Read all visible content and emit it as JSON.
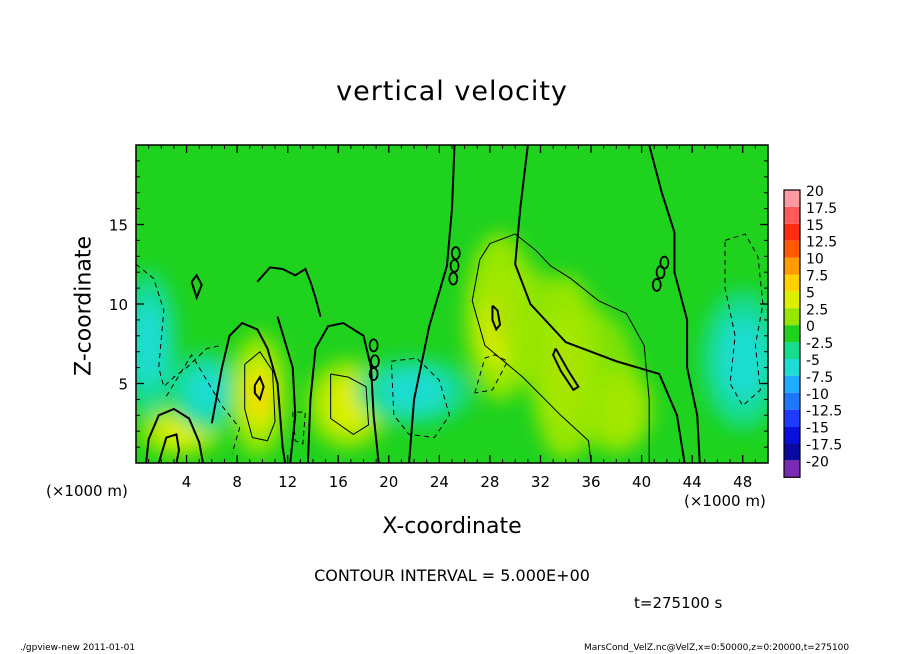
{
  "title": "vertical velocity",
  "x_unit": "(×1000 m)",
  "x_unit_right": "(×1000 m)",
  "contour_interval": "CONTOUR INTERVAL = 5.000E+00",
  "time_label": "t=275100 s",
  "footer": {
    "left": "./gpview-new   2011-01-01",
    "right": "MarsCond_VelZ.nc@VelZ,x=0:50000,z=0:20000,t=275100"
  },
  "colors": {
    "background_field": "#1ed21e",
    "contour_line": "#000000"
  },
  "chart_data": {
    "type": "heatmap",
    "title": "vertical velocity",
    "xlabel": "X-coordinate",
    "ylabel": "Z-coordinate",
    "xlim": [
      0,
      50
    ],
    "ylim": [
      0,
      20
    ],
    "x_ticks": [
      4,
      8,
      12,
      16,
      20,
      24,
      28,
      32,
      36,
      40,
      44,
      48
    ],
    "y_ticks": [
      5,
      10,
      15
    ],
    "colorbar": {
      "levels": [
        20,
        17.5,
        15,
        12.5,
        10,
        7.5,
        5,
        2.5,
        0,
        -2.5,
        -5,
        -7.5,
        -10,
        -12.5,
        -15,
        -17.5,
        -20
      ],
      "colors": [
        "#ff9aa2",
        "#ff5a5a",
        "#ff2a10",
        "#ff5a00",
        "#ff9a00",
        "#ffd200",
        "#ddef00",
        "#96e600",
        "#1ed21e",
        "#17dc8c",
        "#1edcd2",
        "#1eaaff",
        "#1e78ff",
        "#1e3cff",
        "#0a10dc",
        "#0a0aa0",
        "#7a2ab4"
      ]
    },
    "features": [
      {
        "kind": "updraft",
        "x": 3.5,
        "z": 2.0,
        "max": 5
      },
      {
        "kind": "downdraft",
        "x": 5.5,
        "z": 4.5,
        "min": -5
      },
      {
        "kind": "updraft",
        "x": 9.7,
        "z": 4.3,
        "max": 7.5
      },
      {
        "kind": "updraft",
        "x": 16.8,
        "z": 3.7,
        "max": 5
      },
      {
        "kind": "downdraft",
        "x": 22.0,
        "z": 4.5,
        "min": -5
      },
      {
        "kind": "updraft",
        "x": 28.8,
        "z": 9.2,
        "max": 7.5
      },
      {
        "kind": "updraft",
        "x": 34.0,
        "z": 6.0,
        "max": 7.5
      },
      {
        "kind": "updraft",
        "x": 38.3,
        "z": 3.4,
        "max": 5
      },
      {
        "kind": "downdraft",
        "x": 48.0,
        "z": 6.5,
        "min": -5
      },
      {
        "kind": "downdraft",
        "x": 1.0,
        "z": 7.5,
        "min": -5
      }
    ]
  }
}
